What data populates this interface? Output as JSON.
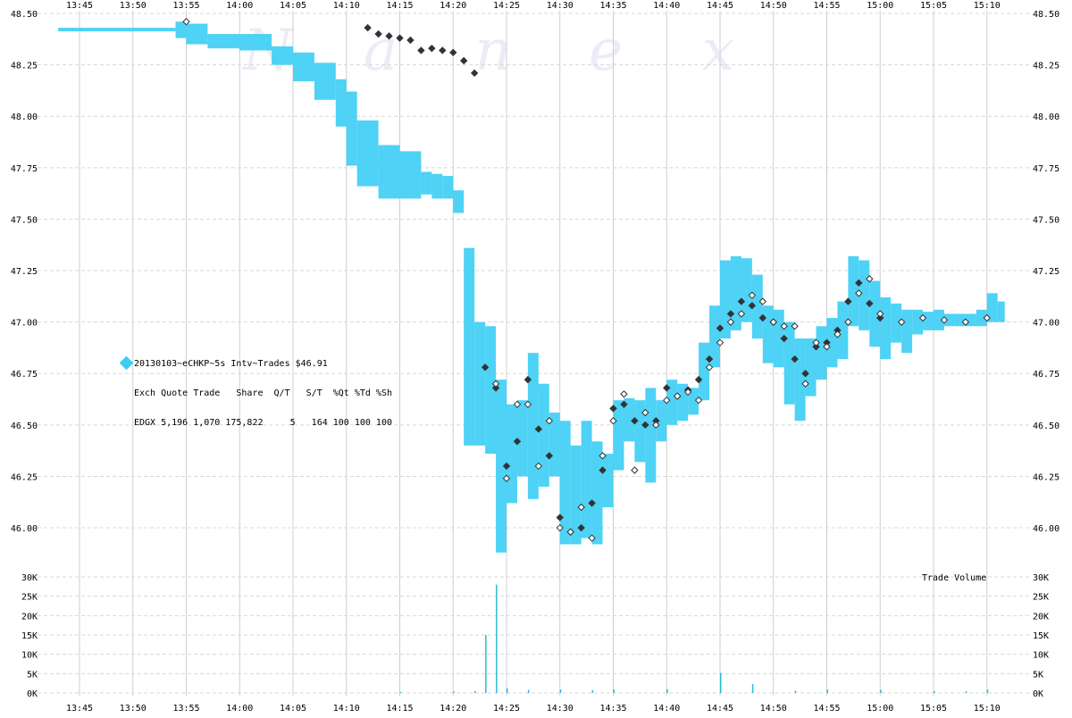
{
  "watermark": [
    "N",
    "a",
    "n",
    "e",
    "x"
  ],
  "legend": {
    "title": "20130103~eCHKP~5s Intv~Trades $46.91",
    "header": "Exch Quote Trade   Share  Q/T   S/T  %Qt %Td %Sh",
    "row": "EDGX 5,196 1,070 175,822     5   164 100 100 100",
    "exchange": "EDGX",
    "marker_color": "#3ccdf2"
  },
  "volume_label": "Trade Volume",
  "colors": {
    "quote": "#45d0f4",
    "trade_dark": "#333333",
    "trade_light": "#ffffff",
    "grid": "#d8d8d8",
    "volume": "#2bbad8"
  },
  "chart_data": [
    {
      "type": "line",
      "title": "",
      "xlabel": "",
      "ylabel": "",
      "x_ticks": [
        "13:45",
        "13:50",
        "13:55",
        "14:00",
        "14:05",
        "14:10",
        "14:15",
        "14:20",
        "14:25",
        "14:30",
        "14:35",
        "14:40",
        "14:45",
        "14:50",
        "14:55",
        "15:00",
        "15:05",
        "15:10"
      ],
      "ylim": [
        45.87,
        48.5
      ],
      "y_ticks": [
        "48.50",
        "48.25",
        "48.00",
        "47.75",
        "47.50",
        "47.25",
        "47.00",
        "46.75",
        "46.50",
        "46.25",
        "46.00"
      ],
      "grid": true,
      "series": [
        {
          "kind": "quote-range",
          "x": [
            "13:43",
            "13:54",
            "13:55",
            "13:57",
            "14:00",
            "14:03",
            "14:05",
            "14:07",
            "14:09",
            "14:10",
            "14:11",
            "14:13",
            "14:15",
            "14:17",
            "14:18",
            "14:19",
            "14:20",
            "14:21",
            "14:22",
            "14:23",
            "14:24",
            "14:25",
            "14:26",
            "14:27",
            "14:28",
            "14:29",
            "14:30",
            "14:31",
            "14:32",
            "14:33",
            "14:34",
            "14:35",
            "14:36",
            "14:37",
            "14:38",
            "14:39",
            "14:40",
            "14:41",
            "14:42",
            "14:43",
            "14:44",
            "14:45",
            "14:46",
            "14:47",
            "14:48",
            "14:49",
            "14:50",
            "14:51",
            "14:52",
            "14:53",
            "14:54",
            "14:55",
            "14:56",
            "14:57",
            "14:58",
            "14:59",
            "15:00",
            "15:01",
            "15:02",
            "15:03",
            "15:04",
            "15:05",
            "15:06",
            "15:07",
            "15:08",
            "15:09",
            "15:10",
            "15:11"
          ],
          "high": [
            48.43,
            48.46,
            48.45,
            48.4,
            48.4,
            48.34,
            48.31,
            48.26,
            48.18,
            48.12,
            47.98,
            47.86,
            47.83,
            47.73,
            47.72,
            47.71,
            47.64,
            47.36,
            47.0,
            46.98,
            46.72,
            46.6,
            46.62,
            46.85,
            46.7,
            46.56,
            46.52,
            46.4,
            46.52,
            46.42,
            46.36,
            46.62,
            46.63,
            46.62,
            46.68,
            46.62,
            46.72,
            46.7,
            46.68,
            46.9,
            47.08,
            47.3,
            47.32,
            47.31,
            47.23,
            47.08,
            47.06,
            47.0,
            46.92,
            46.92,
            46.98,
            47.02,
            47.1,
            47.32,
            47.3,
            47.2,
            47.12,
            47.09,
            47.06,
            47.06,
            47.05,
            47.06,
            47.04,
            47.04,
            47.04,
            47.06,
            47.14,
            47.1
          ],
          "low": [
            48.43,
            48.38,
            48.35,
            48.33,
            48.32,
            48.25,
            48.17,
            48.08,
            47.95,
            47.76,
            47.66,
            47.6,
            47.6,
            47.62,
            47.6,
            47.6,
            47.53,
            46.4,
            46.4,
            46.36,
            45.88,
            46.12,
            46.25,
            46.14,
            46.2,
            46.25,
            45.92,
            45.92,
            45.95,
            45.92,
            46.1,
            46.28,
            46.42,
            46.32,
            46.22,
            46.42,
            46.5,
            46.52,
            46.55,
            46.62,
            46.78,
            46.92,
            46.96,
            47.0,
            46.92,
            46.8,
            46.78,
            46.6,
            46.52,
            46.64,
            46.72,
            46.78,
            46.82,
            46.98,
            46.96,
            46.88,
            46.82,
            46.9,
            46.85,
            46.94,
            46.96,
            46.96,
            46.98,
            46.98,
            46.98,
            46.98,
            47.0,
            47.0
          ]
        },
        {
          "kind": "trades-dark",
          "x": [
            "14:12",
            "14:13",
            "14:14",
            "14:15",
            "14:16",
            "14:17",
            "14:18",
            "14:19",
            "14:20",
            "14:21",
            "14:22",
            "14:23",
            "14:24",
            "14:25",
            "14:26",
            "14:27",
            "14:28",
            "14:29",
            "14:30",
            "14:31",
            "14:32",
            "14:33",
            "14:34",
            "14:35",
            "14:36",
            "14:37",
            "14:38",
            "14:39",
            "14:40",
            "14:41",
            "14:42",
            "14:43",
            "14:44",
            "14:45",
            "14:46",
            "14:47",
            "14:48",
            "14:49",
            "14:50",
            "14:51",
            "14:52",
            "14:53",
            "14:54",
            "14:55",
            "14:56",
            "14:57",
            "14:58",
            "14:59",
            "15:00"
          ],
          "y": [
            48.43,
            48.4,
            48.39,
            48.38,
            48.37,
            48.32,
            48.33,
            48.32,
            48.31,
            48.27,
            48.21,
            46.78,
            46.68,
            46.3,
            46.42,
            46.72,
            46.48,
            46.35,
            46.05,
            45.98,
            46.0,
            46.12,
            46.28,
            46.58,
            46.6,
            46.52,
            46.5,
            46.52,
            46.68,
            46.64,
            46.67,
            46.72,
            46.82,
            46.97,
            47.04,
            47.1,
            47.08,
            47.02,
            47.0,
            46.92,
            46.82,
            46.75,
            46.88,
            46.9,
            46.96,
            47.1,
            47.19,
            47.09,
            47.02
          ]
        },
        {
          "kind": "trades-light",
          "x": [
            "13:55",
            "14:24",
            "14:25",
            "14:26",
            "14:27",
            "14:28",
            "14:29",
            "14:30",
            "14:31",
            "14:32",
            "14:33",
            "14:34",
            "14:35",
            "14:36",
            "14:37",
            "14:38",
            "14:39",
            "14:40",
            "14:41",
            "14:42",
            "14:43",
            "14:44",
            "14:45",
            "14:46",
            "14:47",
            "14:48",
            "14:49",
            "14:50",
            "14:51",
            "14:52",
            "14:53",
            "14:54",
            "14:55",
            "14:56",
            "14:57",
            "14:58",
            "14:59",
            "15:00",
            "15:02",
            "15:04",
            "15:06",
            "15:08",
            "15:10"
          ],
          "y": [
            48.46,
            46.7,
            46.24,
            46.6,
            46.6,
            46.3,
            46.52,
            46.0,
            45.98,
            46.1,
            45.95,
            46.35,
            46.52,
            46.65,
            46.28,
            46.56,
            46.5,
            46.62,
            46.64,
            46.66,
            46.62,
            46.78,
            46.9,
            47.0,
            47.04,
            47.13,
            47.1,
            47.0,
            46.98,
            46.98,
            46.7,
            46.9,
            46.88,
            46.94,
            47.0,
            47.14,
            47.21,
            47.04,
            47.0,
            47.02,
            47.01,
            47.0,
            47.02
          ]
        }
      ]
    },
    {
      "type": "bar",
      "title": "Trade Volume",
      "ylim": [
        0,
        30000
      ],
      "y_ticks": [
        "30K",
        "25K",
        "20K",
        "15K",
        "10K",
        "5K",
        "0K"
      ],
      "x": [
        "14:15",
        "14:20",
        "14:22",
        "14:23",
        "14:24",
        "14:25",
        "14:27",
        "14:30",
        "14:33",
        "14:35",
        "14:40",
        "14:45",
        "14:48",
        "14:52",
        "14:55",
        "15:00",
        "15:05",
        "15:08",
        "15:10"
      ],
      "values": [
        300,
        400,
        500,
        15000,
        28000,
        1200,
        800,
        900,
        700,
        900,
        1000,
        5200,
        2300,
        600,
        900,
        800,
        500,
        400,
        900
      ]
    }
  ]
}
